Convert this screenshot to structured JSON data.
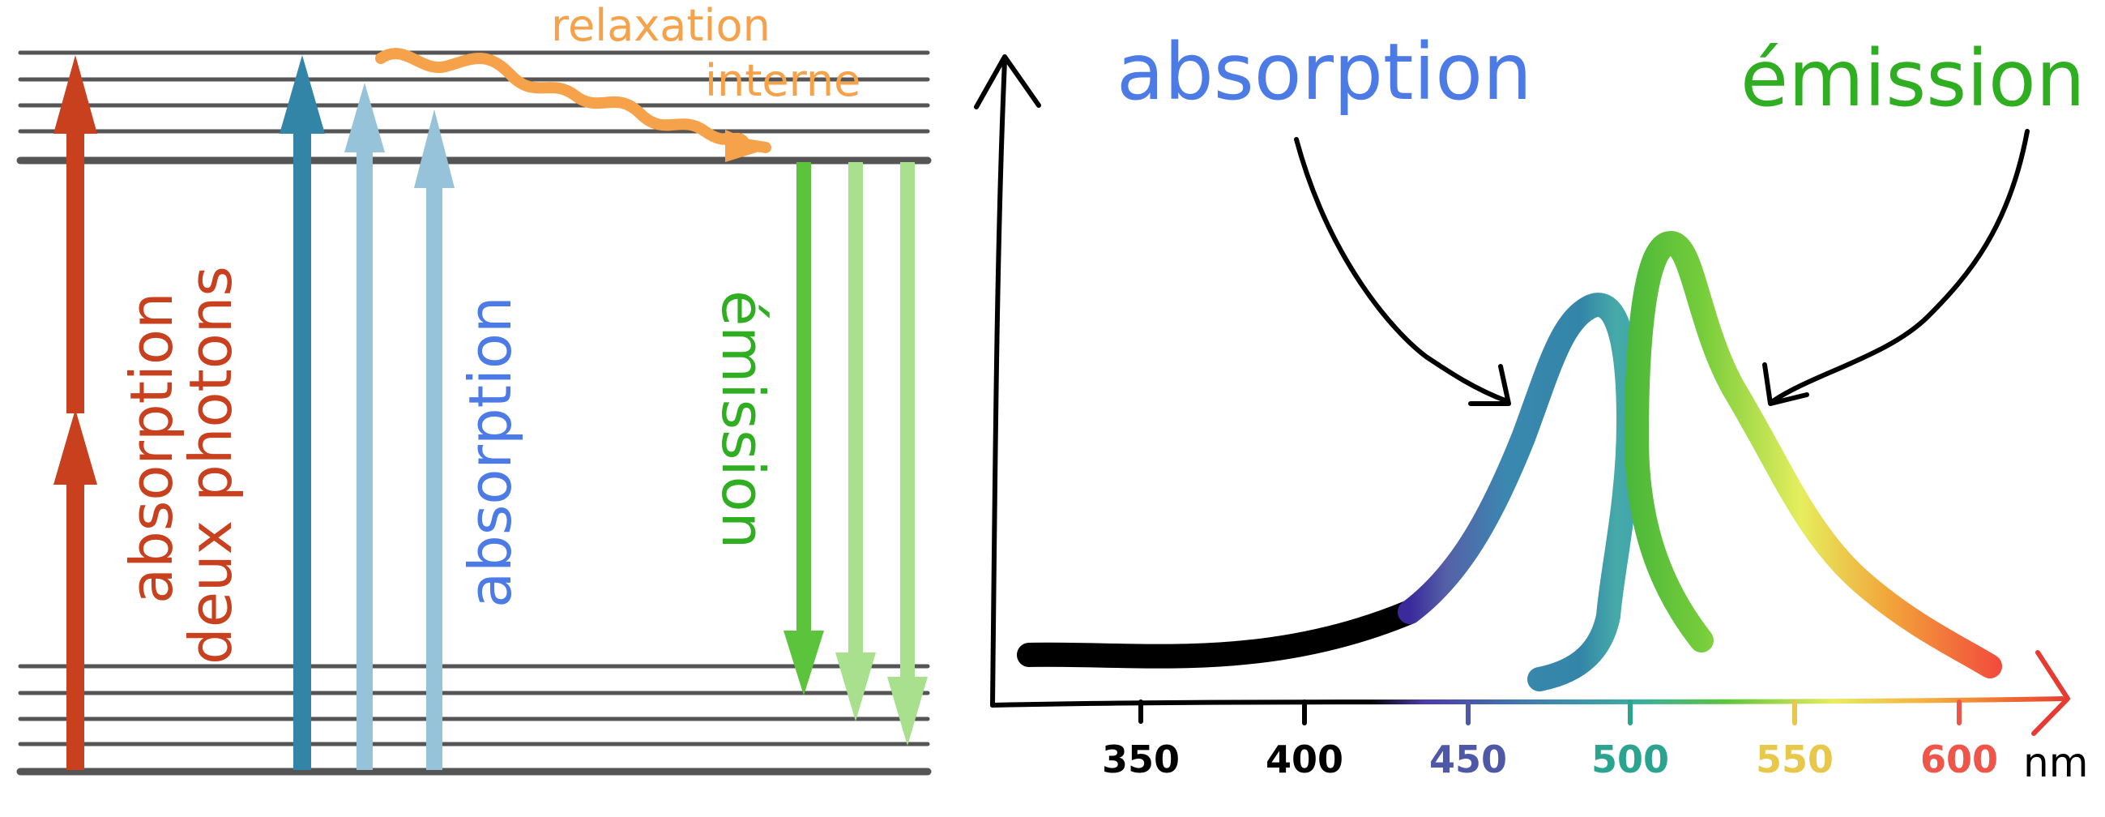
{
  "jablonski": {
    "two_photon_label_line1": "absorption",
    "two_photon_label_line2": "deux photons",
    "absorption_label": "absorption",
    "emission_label": "émission",
    "relaxation_line1": "relaxation",
    "relaxation_line2": "interne"
  },
  "spectrum": {
    "absorption_label": "absorption",
    "emission_label": "émission",
    "axis_unit": "nm",
    "ticks": [
      {
        "label": "350",
        "color": "#000000"
      },
      {
        "label": "400",
        "color": "#000000"
      },
      {
        "label": "450",
        "color": "#4f58a6"
      },
      {
        "label": "500",
        "color": "#2aa48f"
      },
      {
        "label": "550",
        "color": "#e8c84a"
      },
      {
        "label": "600",
        "color": "#f0554a"
      }
    ]
  },
  "colors": {
    "two_photon": "#c8401e",
    "absorption_dark": "#3385a8",
    "absorption_light": "#97c3da",
    "absorption_text": "#4d7be6",
    "emission_dark": "#5cc43c",
    "emission_light": "#a8e08e",
    "emission_text": "#2fae21",
    "relaxation": "#f6a24a",
    "levels": "#555555"
  }
}
